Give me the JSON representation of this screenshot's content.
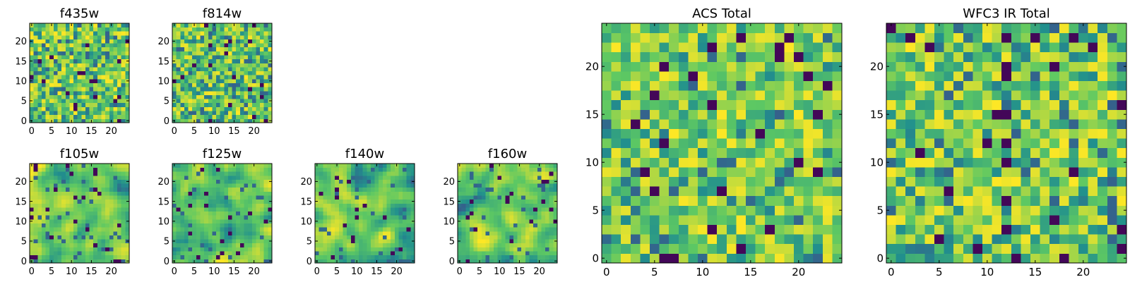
{
  "figure": {
    "colormap": [
      "#440154",
      "#3b528b",
      "#21908d",
      "#5dc863",
      "#fde725"
    ]
  },
  "chart_data": [
    {
      "type": "heatmap",
      "title": "f435w",
      "grid_size": [
        25,
        25
      ],
      "value_range": [
        0,
        1
      ],
      "xlim": [
        -0.5,
        24.5
      ],
      "ylim": [
        -0.5,
        24.5
      ],
      "xticks": [
        0,
        5,
        10,
        15,
        20
      ],
      "yticks": [
        0,
        5,
        10,
        15,
        20
      ],
      "origin": "lower",
      "grid": false,
      "pattern": "pixel-noise",
      "seed": 11,
      "smooth": 0,
      "bias": 0.6
    },
    {
      "type": "heatmap",
      "title": "f814w",
      "grid_size": [
        25,
        25
      ],
      "value_range": [
        0,
        1
      ],
      "xlim": [
        -0.5,
        24.5
      ],
      "ylim": [
        -0.5,
        24.5
      ],
      "xticks": [
        0,
        5,
        10,
        15,
        20
      ],
      "yticks": [
        0,
        5,
        10,
        15,
        20
      ],
      "origin": "lower",
      "grid": false,
      "pattern": "pixel-noise",
      "seed": 23,
      "smooth": 0,
      "bias": 0.6
    },
    {
      "type": "heatmap",
      "title": "f105w",
      "grid_size": [
        25,
        25
      ],
      "value_range": [
        0,
        1
      ],
      "xlim": [
        -0.5,
        24.5
      ],
      "ylim": [
        -0.5,
        24.5
      ],
      "xticks": [
        0,
        5,
        10,
        15,
        20
      ],
      "yticks": [
        0,
        5,
        10,
        15,
        20
      ],
      "origin": "lower",
      "grid": false,
      "pattern": "smoothed-noise",
      "seed": 37,
      "smooth": 2,
      "bias": 0.65
    },
    {
      "type": "heatmap",
      "title": "f125w",
      "grid_size": [
        25,
        25
      ],
      "value_range": [
        0,
        1
      ],
      "xlim": [
        -0.5,
        24.5
      ],
      "ylim": [
        -0.5,
        24.5
      ],
      "xticks": [
        0,
        5,
        10,
        15,
        20
      ],
      "yticks": [
        0,
        5,
        10,
        15,
        20
      ],
      "origin": "lower",
      "grid": false,
      "pattern": "smoothed-noise",
      "seed": 41,
      "smooth": 2,
      "bias": 0.62
    },
    {
      "type": "heatmap",
      "title": "f140w",
      "grid_size": [
        25,
        25
      ],
      "value_range": [
        0,
        1
      ],
      "xlim": [
        -0.5,
        24.5
      ],
      "ylim": [
        -0.5,
        24.5
      ],
      "xticks": [
        0,
        5,
        10,
        15,
        20
      ],
      "yticks": [
        0,
        5,
        10,
        15,
        20
      ],
      "origin": "lower",
      "grid": false,
      "pattern": "smoothed-noise",
      "seed": 53,
      "smooth": 2,
      "bias": 0.55
    },
    {
      "type": "heatmap",
      "title": "f160w",
      "grid_size": [
        25,
        25
      ],
      "value_range": [
        0,
        1
      ],
      "xlim": [
        -0.5,
        24.5
      ],
      "ylim": [
        -0.5,
        24.5
      ],
      "xticks": [
        0,
        5,
        10,
        15,
        20
      ],
      "yticks": [
        0,
        5,
        10,
        15,
        20
      ],
      "origin": "lower",
      "grid": false,
      "pattern": "smoothed-noise",
      "seed": 67,
      "smooth": 2,
      "bias": 0.55
    },
    {
      "type": "heatmap",
      "title": "ACS Total",
      "grid_size": [
        25,
        25
      ],
      "value_range": [
        0,
        1
      ],
      "xlim": [
        -0.5,
        24.5
      ],
      "ylim": [
        -0.5,
        24.5
      ],
      "xticks": [
        0,
        5,
        10,
        15,
        20
      ],
      "yticks": [
        0,
        5,
        10,
        15,
        20
      ],
      "origin": "lower",
      "grid": false,
      "pattern": "pixel-noise",
      "seed": 79,
      "smooth": 0,
      "bias": 0.72
    },
    {
      "type": "heatmap",
      "title": "WFC3 IR Total",
      "grid_size": [
        25,
        25
      ],
      "value_range": [
        0,
        1
      ],
      "xlim": [
        -0.5,
        24.5
      ],
      "ylim": [
        -0.5,
        24.5
      ],
      "xticks": [
        0,
        5,
        10,
        15,
        20
      ],
      "yticks": [
        0,
        5,
        10,
        15,
        20
      ],
      "origin": "lower",
      "grid": false,
      "pattern": "pixel-noise",
      "seed": 97,
      "smooth": 0,
      "bias": 0.66
    }
  ]
}
